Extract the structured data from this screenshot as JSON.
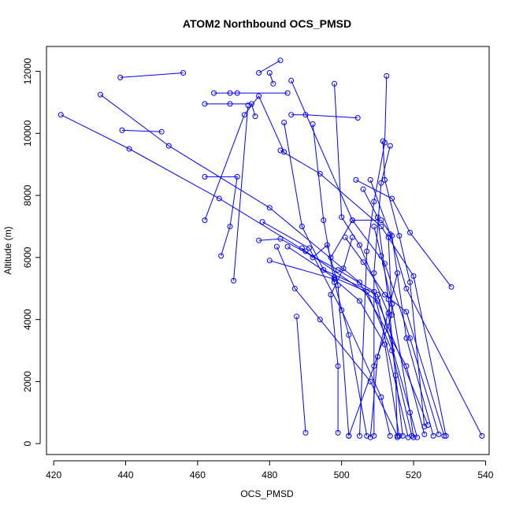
{
  "chart_data": {
    "type": "scatter",
    "title": "ATOM2 Northbound OCS_PMSD",
    "xlabel": "OCS_PMSD",
    "ylabel": "Altitude (m)",
    "xlim": [
      418,
      541
    ],
    "ylim": [
      -350,
      12800
    ],
    "xticks": [
      420,
      440,
      460,
      480,
      500,
      520,
      540
    ],
    "yticks": [
      0,
      2000,
      4000,
      6000,
      8000,
      10000,
      12000
    ],
    "grid": false,
    "legend": "none",
    "colors": {
      "series": "#0000ff",
      "axis": "#000000"
    },
    "series": [
      {
        "style": "points-and-lines",
        "segments": [
          [
            [
              422,
              10600
            ],
            [
              441,
              9500
            ],
            [
              466,
              7900
            ],
            [
              490,
              6200
            ],
            [
              510,
              4600
            ],
            [
              524,
              600
            ]
          ],
          [
            [
              433,
              11250
            ],
            [
              452,
              9600
            ],
            [
              480,
              7600
            ],
            [
              505,
              5200
            ],
            [
              518,
              2500
            ],
            [
              523,
              300
            ]
          ],
          [
            [
              438.5,
              11800
            ],
            [
              456,
              11950
            ]
          ],
          [
            [
              439,
              10100
            ],
            [
              450,
              10050
            ]
          ],
          [
            [
              464.5,
              11300
            ],
            [
              469,
              11300
            ],
            [
              471,
              11300
            ],
            [
              485,
              11300
            ]
          ],
          [
            [
              462,
              10950
            ],
            [
              469,
              10950
            ],
            [
              475,
              10950
            ],
            [
              476,
              10550
            ]
          ],
          [
            [
              483,
              12350
            ],
            [
              477,
              11950
            ]
          ],
          [
            [
              480,
              11950
            ],
            [
              481,
              11600
            ]
          ],
          [
            [
              486,
              10600
            ],
            [
              490,
              10600
            ],
            [
              504.5,
              10500
            ]
          ],
          [
            [
              462,
              8600
            ],
            [
              471,
              8600
            ],
            [
              469,
              7000
            ],
            [
              466.5,
              6050
            ]
          ],
          [
            [
              462,
              7200
            ],
            [
              473,
              10600
            ],
            [
              477,
              11200
            ],
            [
              484,
              9400
            ]
          ],
          [
            [
              470,
              5250
            ],
            [
              474,
              10900
            ]
          ],
          [
            [
              483,
              9450
            ],
            [
              494,
              8700
            ],
            [
              511,
              7000
            ],
            [
              520,
              5400
            ],
            [
              529,
              250
            ]
          ],
          [
            [
              484,
              10350
            ],
            [
              489,
              7000
            ],
            [
              495,
              5600
            ],
            [
              510,
              4800
            ],
            [
              521,
              200
            ]
          ],
          [
            [
              486,
              11700
            ],
            [
              503,
              7200
            ],
            [
              512,
              5800
            ],
            [
              519,
              3400
            ],
            [
              527,
              300
            ]
          ],
          [
            [
              498,
              11600
            ],
            [
              500,
              7300
            ],
            [
              505,
              6400
            ],
            [
              513,
              4200
            ],
            [
              517,
              250
            ]
          ],
          [
            [
              492,
              10300
            ],
            [
              495,
              7200
            ],
            [
              498,
              5200
            ],
            [
              502,
              3500
            ],
            [
              507,
              250
            ]
          ],
          [
            [
              511.5,
              9750
            ],
            [
              512,
              8500
            ],
            [
              516,
              6700
            ],
            [
              519,
              5200
            ],
            [
              523,
              550
            ]
          ],
          [
            [
              512.5,
              11850
            ],
            [
              512,
              9700
            ],
            [
              509,
              7800
            ],
            [
              507,
              6200
            ],
            [
              505,
              250
            ]
          ],
          [
            [
              513.5,
              9600
            ],
            [
              511,
              8400
            ],
            [
              509,
              5500
            ],
            [
              509,
              250
            ]
          ],
          [
            [
              504,
              8500
            ],
            [
              514,
              7900
            ],
            [
              519,
              6800
            ],
            [
              530.5,
              5050
            ]
          ],
          [
            [
              478,
              7150
            ],
            [
              491,
              6300
            ],
            [
              500,
              4300
            ],
            [
              511,
              1500
            ],
            [
              513.5,
              250
            ]
          ],
          [
            [
              477,
              6550
            ],
            [
              483,
              6600
            ],
            [
              499,
              5600
            ],
            [
              509,
              4900
            ],
            [
              518.5,
              200
            ]
          ],
          [
            [
              480,
              5900
            ],
            [
              498,
              5300
            ],
            [
              505,
              4600
            ],
            [
              512,
              3200
            ],
            [
              516,
              250
            ]
          ],
          [
            [
              482,
              6350
            ],
            [
              487,
              5000
            ],
            [
              494,
              4000
            ],
            [
              508,
              2000
            ],
            [
              515.5,
              250
            ]
          ],
          [
            [
              487.5,
              4100
            ],
            [
              490,
              350
            ]
          ],
          [
            [
              485,
              6350
            ],
            [
              498,
              5350
            ],
            [
              507,
              4900
            ],
            [
              514,
              3000
            ],
            [
              519.5,
              250
            ]
          ],
          [
            [
              489,
              6300
            ],
            [
              492,
              6000
            ],
            [
              496,
              6400
            ],
            [
              499,
              5100
            ],
            [
              502,
              250
            ]
          ],
          [
            [
              497,
              6000
            ],
            [
              503,
              7200
            ],
            [
              511,
              7200
            ],
            [
              514,
              6700
            ],
            [
              518,
              3400
            ],
            [
              525.5,
              250
            ]
          ],
          [
            [
              501,
              6650
            ],
            [
              506,
              5850
            ],
            [
              512,
              4800
            ],
            [
              518,
              4250
            ],
            [
              528.5,
              250
            ]
          ],
          [
            [
              506,
              8200
            ],
            [
              510,
              7300
            ],
            [
              513,
              4650
            ],
            [
              515,
              2200
            ],
            [
              515.5,
              200
            ]
          ],
          [
            [
              508,
              8500
            ],
            [
              513.5,
              6750
            ],
            [
              518,
              5000
            ],
            [
              539,
              250
            ]
          ],
          [
            [
              509,
              7000
            ],
            [
              511,
              6050
            ],
            [
              514,
              4500
            ],
            [
              519,
              1000
            ],
            [
              520,
              200
            ]
          ],
          [
            [
              503,
              6650
            ],
            [
              500.5,
              5650
            ],
            [
              497,
              4800
            ],
            [
              499,
              2500
            ],
            [
              499,
              350
            ]
          ],
          [
            [
              513,
              6650
            ],
            [
              514,
              4150
            ],
            [
              509,
              2500
            ],
            [
              502,
              250
            ]
          ],
          [
            [
              515.5,
              5500
            ],
            [
              510,
              2800
            ],
            [
              508,
              200
            ]
          ]
        ]
      }
    ]
  }
}
